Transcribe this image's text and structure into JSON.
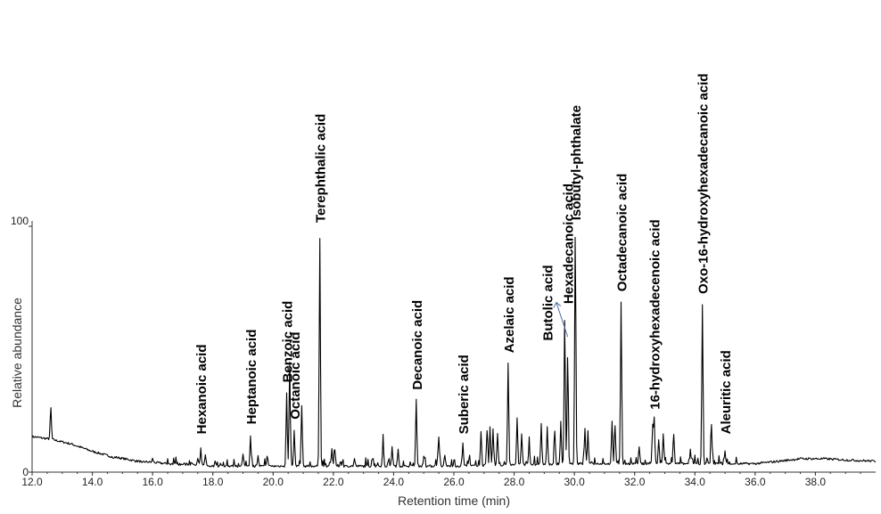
{
  "chart_data": {
    "type": "line",
    "title": "",
    "xlabel": "Retention time (min)",
    "ylabel": "Relative abundance",
    "xlim": [
      12.0,
      40.0
    ],
    "ylim": [
      0,
      100
    ],
    "x_ticks": [
      "12.0",
      "14.0",
      "16.0",
      "18.0",
      "20.0",
      "22.0",
      "24.0",
      "26.0",
      "28.0",
      "30.0",
      "32.0",
      "34.0",
      "36.0",
      "38.0"
    ],
    "y_ticks": [
      "0",
      "100"
    ],
    "grid": false,
    "line_color": "#000000",
    "arrow_color": "#4a6fa5",
    "baseline": [
      [
        12.0,
        14
      ],
      [
        12.6,
        13
      ],
      [
        13.3,
        11
      ],
      [
        14.0,
        8
      ],
      [
        14.6,
        6
      ],
      [
        15.5,
        4
      ],
      [
        16.5,
        3
      ],
      [
        18.0,
        2
      ],
      [
        20.0,
        2
      ],
      [
        22.0,
        2
      ],
      [
        24.0,
        2
      ],
      [
        26.0,
        2
      ],
      [
        28.0,
        2.5
      ],
      [
        30.0,
        3
      ],
      [
        32.0,
        3
      ],
      [
        34.0,
        3
      ],
      [
        35.0,
        3
      ],
      [
        36.0,
        3
      ],
      [
        36.8,
        4
      ],
      [
        37.5,
        5
      ],
      [
        38.3,
        5
      ],
      [
        39.0,
        4.5
      ],
      [
        40.0,
        4
      ]
    ],
    "series": [
      {
        "x": [
          12.62,
          14.7,
          15.5,
          15.65,
          16.0,
          17.3,
          17.5,
          17.6,
          17.75,
          18.25,
          19.0,
          19.25,
          19.5,
          19.8,
          20.45,
          20.55,
          20.7,
          20.95,
          21.55,
          21.95,
          22.05,
          22.7,
          23.3,
          23.65,
          23.95,
          24.15,
          24.75,
          25.0,
          25.5,
          25.7,
          26.3,
          26.5,
          26.9,
          27.1,
          27.2,
          27.3,
          27.45,
          27.8,
          28.1,
          28.25,
          28.5,
          28.9,
          29.1,
          29.35,
          29.55,
          29.68,
          29.78,
          30.03,
          30.35,
          30.45,
          31.25,
          31.35,
          31.55,
          32.15,
          32.6,
          32.65,
          32.8,
          32.95,
          33.3,
          33.85,
          34.25,
          34.55,
          35.0
        ],
        "values": [
          26,
          5,
          4,
          3,
          5,
          3,
          5,
          9,
          7,
          3,
          7,
          14,
          6,
          5,
          32,
          44,
          16,
          27,
          95,
          9,
          9,
          5,
          5,
          13,
          10,
          9,
          29,
          5,
          14,
          6,
          11,
          5,
          16,
          16,
          18,
          17,
          15,
          44,
          22,
          15,
          12,
          19,
          17,
          16,
          20,
          63,
          48,
          98,
          17,
          16,
          20,
          18,
          69,
          10,
          18,
          21,
          13,
          15,
          15,
          7,
          68,
          19,
          8
        ]
      }
    ],
    "annotations": [
      {
        "text": "Hexanoic acid",
        "x": 17.6,
        "y": 14
      },
      {
        "text": "Heptanoic acid",
        "x": 19.25,
        "y": 18
      },
      {
        "text": "Benzoic acid",
        "x": 20.45,
        "y": 35
      },
      {
        "text": "Octanoic acid",
        "x": 20.7,
        "y": 20
      },
      {
        "text": "Terephthalic acid",
        "x": 21.55,
        "y": 100
      },
      {
        "text": "Decanoic acid",
        "x": 24.75,
        "y": 32
      },
      {
        "text": "Suberic acid",
        "x": 26.3,
        "y": 14
      },
      {
        "text": "Azelaic acid",
        "x": 27.8,
        "y": 47
      },
      {
        "text": "Butolic acid",
        "x": 29.1,
        "y": 52
      },
      {
        "text": "Hexadecanoic acid",
        "x": 29.78,
        "y": 67
      },
      {
        "text": "Isobutyl-phthalate",
        "x": 30.03,
        "y": 101
      },
      {
        "text": "Octadecanoic acid",
        "x": 31.55,
        "y": 72
      },
      {
        "text": "16-hydroxyhexadecenoic acid",
        "x": 32.65,
        "y": 24
      },
      {
        "text": "Oxo-16-hydroxyhexadecanoic acid",
        "x": 34.25,
        "y": 71
      },
      {
        "text": "Aleuritic acid",
        "x": 35.0,
        "y": 14
      }
    ]
  }
}
